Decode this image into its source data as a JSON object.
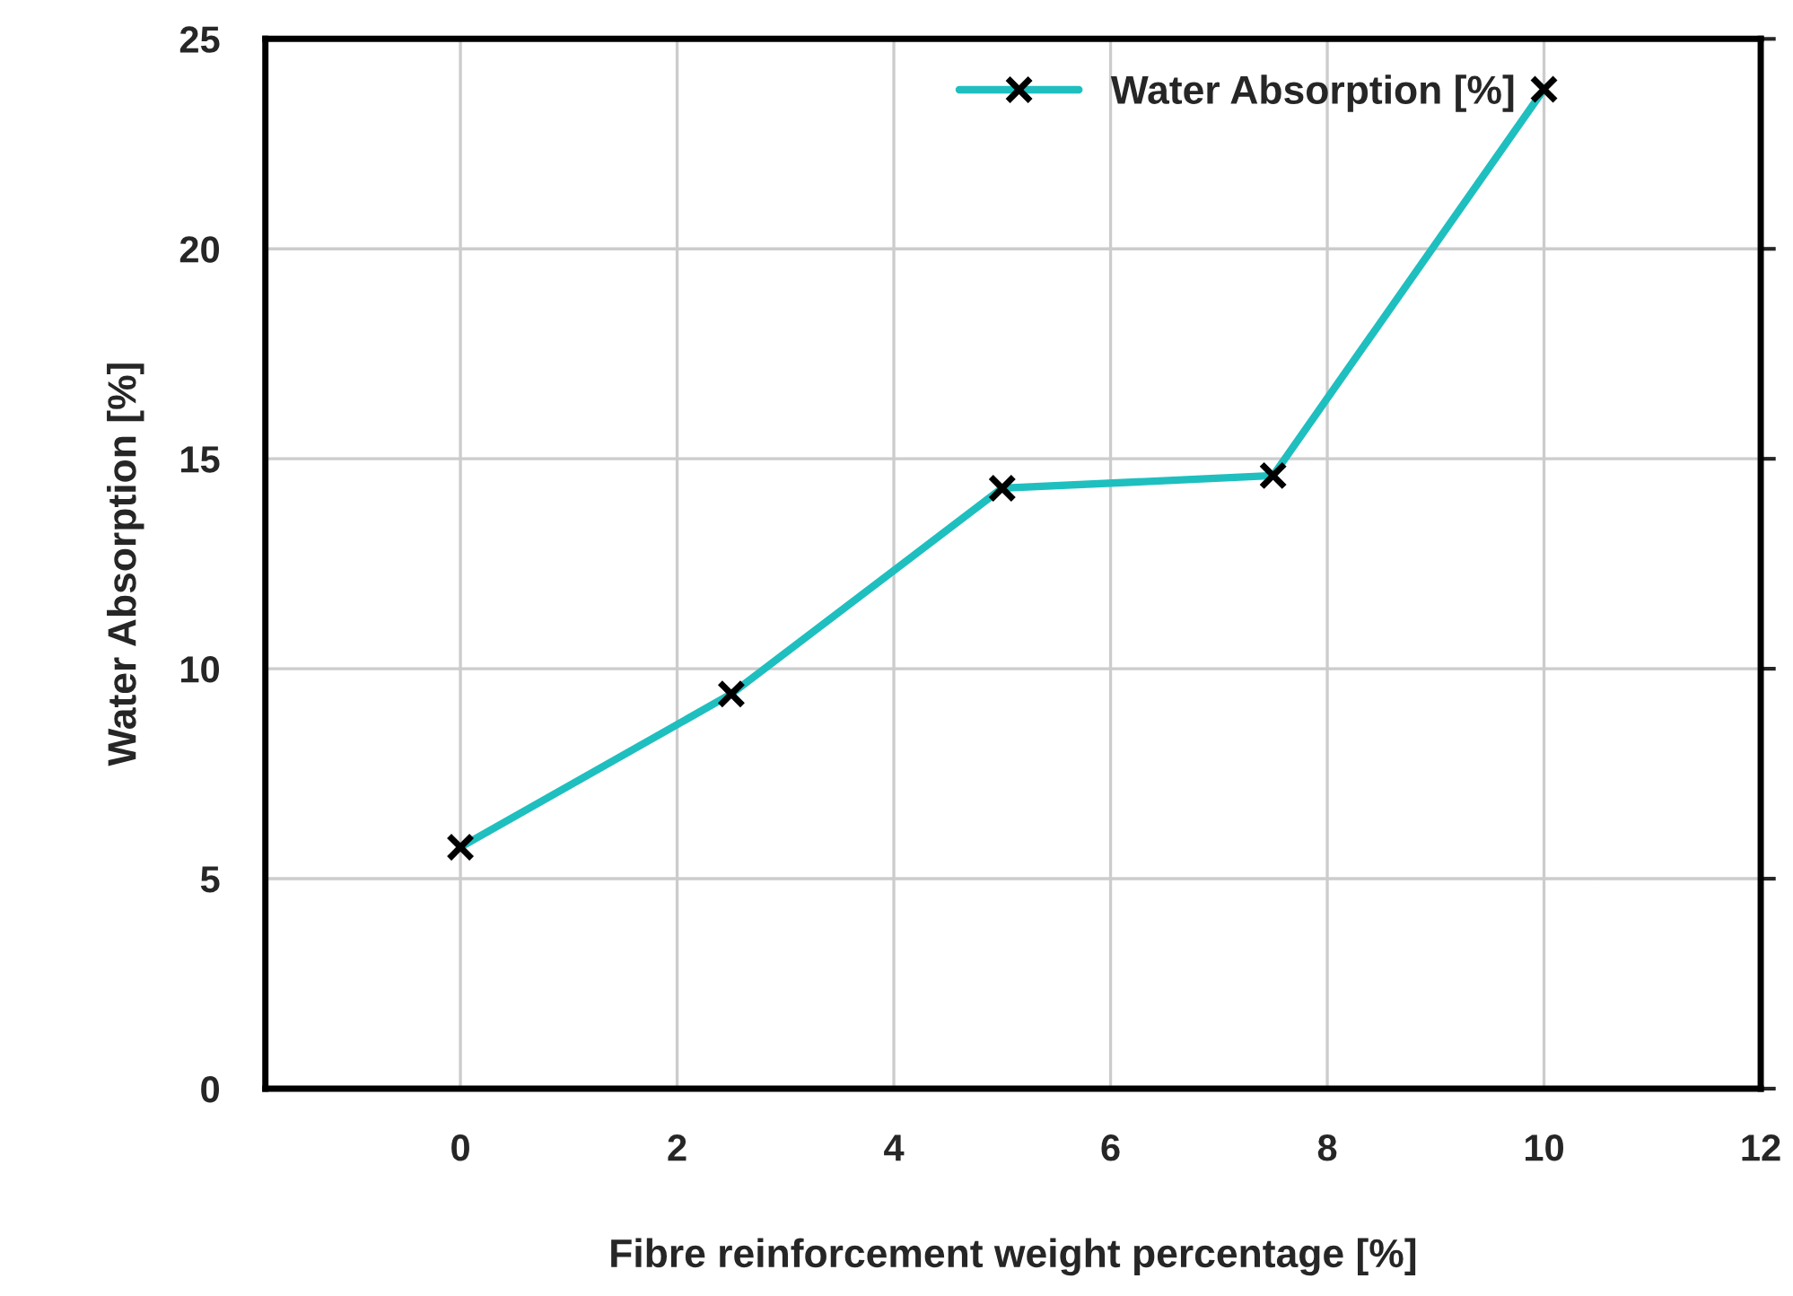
{
  "chart_data": {
    "type": "line",
    "xlabel": "Fibre reinforcement weight percentage [%]",
    "ylabel": "Water Absorption [%]",
    "x": [
      0,
      2.5,
      5,
      7.5,
      10
    ],
    "series": [
      {
        "name": "Water Absorption [%]",
        "color": "#1fbfbf",
        "values": [
          5.75,
          9.4,
          14.3,
          14.6,
          23.8
        ]
      }
    ],
    "xlim": [
      -1.8,
      12
    ],
    "xticks": [
      0,
      2,
      4,
      6,
      8,
      10,
      12
    ],
    "ylim": [
      0,
      25
    ],
    "yticks": [
      0,
      5,
      10,
      15,
      20,
      25
    ],
    "grid": true,
    "legend": "top right",
    "marker": "cross",
    "line_style": "solid"
  }
}
